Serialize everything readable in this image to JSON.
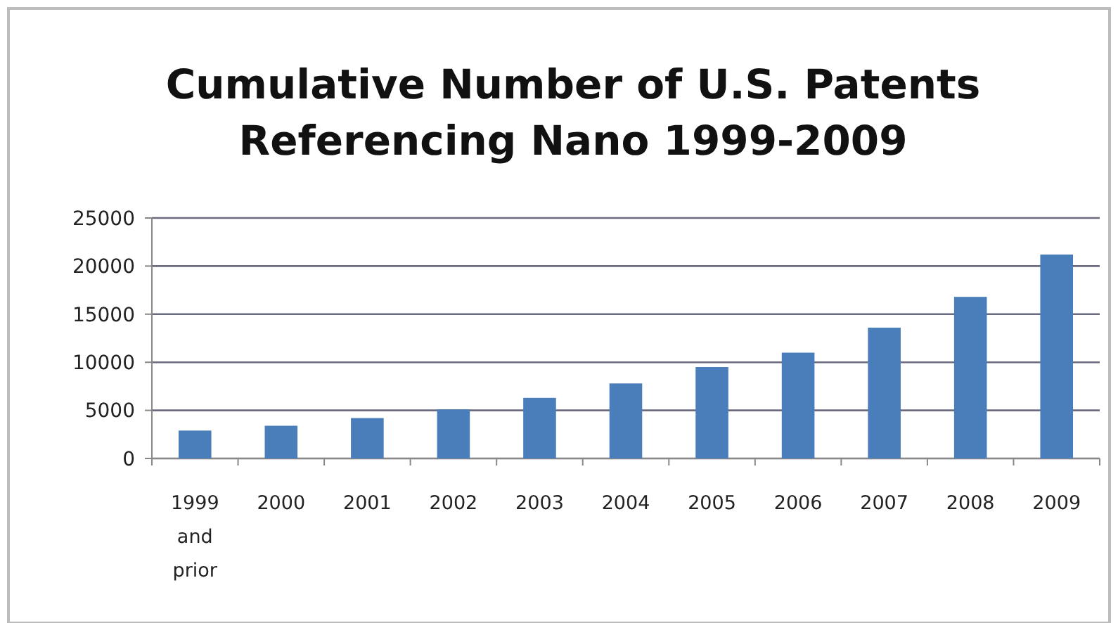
{
  "chart_data": {
    "type": "bar",
    "title": "Cumulative Number of U.S. Patents Referencing Nano 1999-2009",
    "categories": [
      "1999 and prior",
      "2000",
      "2001",
      "2002",
      "2003",
      "2004",
      "2005",
      "2006",
      "2007",
      "2008",
      "2009"
    ],
    "values": [
      2900,
      3400,
      4200,
      5100,
      6300,
      7800,
      9500,
      11000,
      13600,
      16800,
      21200
    ],
    "color": "#4a7ebb",
    "ylim": [
      0,
      25000
    ],
    "yticks": [
      0,
      5000,
      10000,
      15000,
      20000,
      25000
    ],
    "grid": true
  }
}
